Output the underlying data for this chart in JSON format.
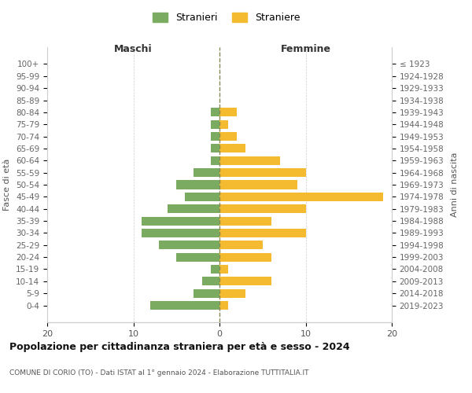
{
  "age_groups": [
    "100+",
    "95-99",
    "90-94",
    "85-89",
    "80-84",
    "75-79",
    "70-74",
    "65-69",
    "60-64",
    "55-59",
    "50-54",
    "45-49",
    "40-44",
    "35-39",
    "30-34",
    "25-29",
    "20-24",
    "15-19",
    "10-14",
    "5-9",
    "0-4"
  ],
  "birth_years": [
    "≤ 1923",
    "1924-1928",
    "1929-1933",
    "1934-1938",
    "1939-1943",
    "1944-1948",
    "1949-1953",
    "1954-1958",
    "1959-1963",
    "1964-1968",
    "1969-1973",
    "1974-1978",
    "1979-1983",
    "1984-1988",
    "1989-1993",
    "1994-1998",
    "1999-2003",
    "2004-2008",
    "2009-2013",
    "2014-2018",
    "2019-2023"
  ],
  "maschi": [
    0,
    0,
    0,
    0,
    1,
    1,
    1,
    1,
    1,
    3,
    5,
    4,
    6,
    9,
    9,
    7,
    5,
    1,
    2,
    3,
    8
  ],
  "femmine": [
    0,
    0,
    0,
    0,
    2,
    1,
    2,
    3,
    7,
    10,
    9,
    19,
    10,
    6,
    10,
    5,
    6,
    1,
    6,
    3,
    1
  ],
  "maschi_color": "#7aab60",
  "femmine_color": "#f5bb30",
  "title": "Popolazione per cittadinanza straniera per età e sesso - 2024",
  "subtitle": "COMUNE DI CORIO (TO) - Dati ISTAT al 1° gennaio 2024 - Elaborazione TUTTITALIA.IT",
  "xlabel_left": "Maschi",
  "xlabel_right": "Femmine",
  "ylabel_left": "Fasce di età",
  "ylabel_right": "Anni di nascita",
  "legend_maschi": "Stranieri",
  "legend_femmine": "Straniere",
  "xlim": 20,
  "background_color": "#ffffff",
  "grid_color": "#cccccc"
}
